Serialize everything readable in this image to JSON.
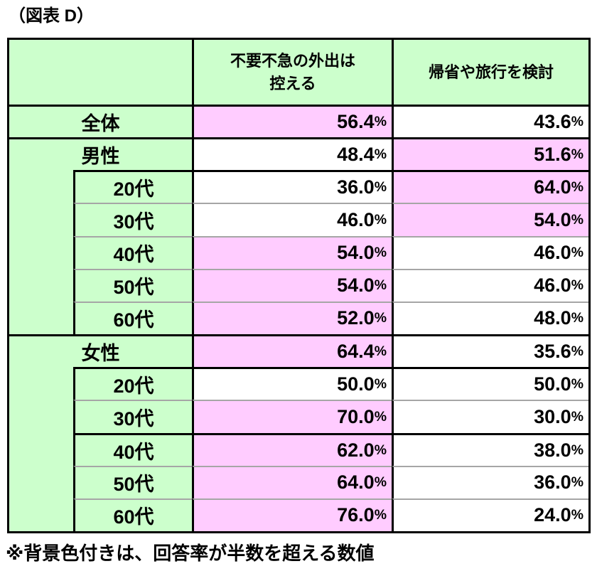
{
  "title": "（図表 D）",
  "footnote": "※背景色付きは、回答率が半数を超える数値",
  "colors": {
    "green": "#ccffcc",
    "pink": "#ffccff",
    "border": "#000000",
    "sep": "#a6a6a6"
  },
  "table": {
    "header": {
      "corner": "",
      "refrain": "不要不急の外出は\n控える",
      "travel": "帰省や旅行を検討"
    },
    "rows": [
      {
        "label": "全体",
        "indent": false,
        "refrain": "56.4%",
        "refrain_highlight": true,
        "travel": "43.6%",
        "travel_highlight": false
      },
      {
        "label": "男性",
        "indent": false,
        "refrain": "48.4%",
        "refrain_highlight": false,
        "travel": "51.6%",
        "travel_highlight": true
      },
      {
        "label": "20代",
        "indent": true,
        "refrain": "36.0%",
        "refrain_highlight": false,
        "travel": "64.0%",
        "travel_highlight": true
      },
      {
        "label": "30代",
        "indent": true,
        "refrain": "46.0%",
        "refrain_highlight": false,
        "travel": "54.0%",
        "travel_highlight": true
      },
      {
        "label": "40代",
        "indent": true,
        "refrain": "54.0%",
        "refrain_highlight": true,
        "travel": "46.0%",
        "travel_highlight": false
      },
      {
        "label": "50代",
        "indent": true,
        "refrain": "54.0%",
        "refrain_highlight": true,
        "travel": "46.0%",
        "travel_highlight": false
      },
      {
        "label": "60代",
        "indent": true,
        "refrain": "52.0%",
        "refrain_highlight": true,
        "travel": "48.0%",
        "travel_highlight": false
      },
      {
        "label": "女性",
        "indent": false,
        "refrain": "64.4%",
        "refrain_highlight": true,
        "travel": "35.6%",
        "travel_highlight": false
      },
      {
        "label": "20代",
        "indent": true,
        "refrain": "50.0%",
        "refrain_highlight": false,
        "travel": "50.0%",
        "travel_highlight": false
      },
      {
        "label": "30代",
        "indent": true,
        "refrain": "70.0%",
        "refrain_highlight": true,
        "travel": "30.0%",
        "travel_highlight": false
      },
      {
        "label": "40代",
        "indent": true,
        "refrain": "62.0%",
        "refrain_highlight": true,
        "travel": "38.0%",
        "travel_highlight": false
      },
      {
        "label": "50代",
        "indent": true,
        "refrain": "64.0%",
        "refrain_highlight": true,
        "travel": "36.0%",
        "travel_highlight": false
      },
      {
        "label": "60代",
        "indent": true,
        "refrain": "76.0%",
        "refrain_highlight": true,
        "travel": "24.0%",
        "travel_highlight": false
      }
    ]
  },
  "chart_data": {
    "type": "table",
    "title": "（図表 D）",
    "columns": [
      "不要不急の外出は控える",
      "帰省や旅行を検討"
    ],
    "highlight_rule": "背景色付きは、回答率が半数を超える数値",
    "rows": [
      {
        "group": "全体",
        "refrain_pct": 56.4,
        "travel_pct": 43.6
      },
      {
        "group": "男性",
        "refrain_pct": 48.4,
        "travel_pct": 51.6
      },
      {
        "group": "男性 20代",
        "refrain_pct": 36.0,
        "travel_pct": 64.0
      },
      {
        "group": "男性 30代",
        "refrain_pct": 46.0,
        "travel_pct": 54.0
      },
      {
        "group": "男性 40代",
        "refrain_pct": 54.0,
        "travel_pct": 46.0
      },
      {
        "group": "男性 50代",
        "refrain_pct": 54.0,
        "travel_pct": 46.0
      },
      {
        "group": "男性 60代",
        "refrain_pct": 52.0,
        "travel_pct": 48.0
      },
      {
        "group": "女性",
        "refrain_pct": 64.4,
        "travel_pct": 35.6
      },
      {
        "group": "女性 20代",
        "refrain_pct": 50.0,
        "travel_pct": 50.0
      },
      {
        "group": "女性 30代",
        "refrain_pct": 70.0,
        "travel_pct": 30.0
      },
      {
        "group": "女性 40代",
        "refrain_pct": 62.0,
        "travel_pct": 38.0
      },
      {
        "group": "女性 50代",
        "refrain_pct": 64.0,
        "travel_pct": 36.0
      },
      {
        "group": "女性 60代",
        "refrain_pct": 76.0,
        "travel_pct": 24.0
      }
    ]
  }
}
